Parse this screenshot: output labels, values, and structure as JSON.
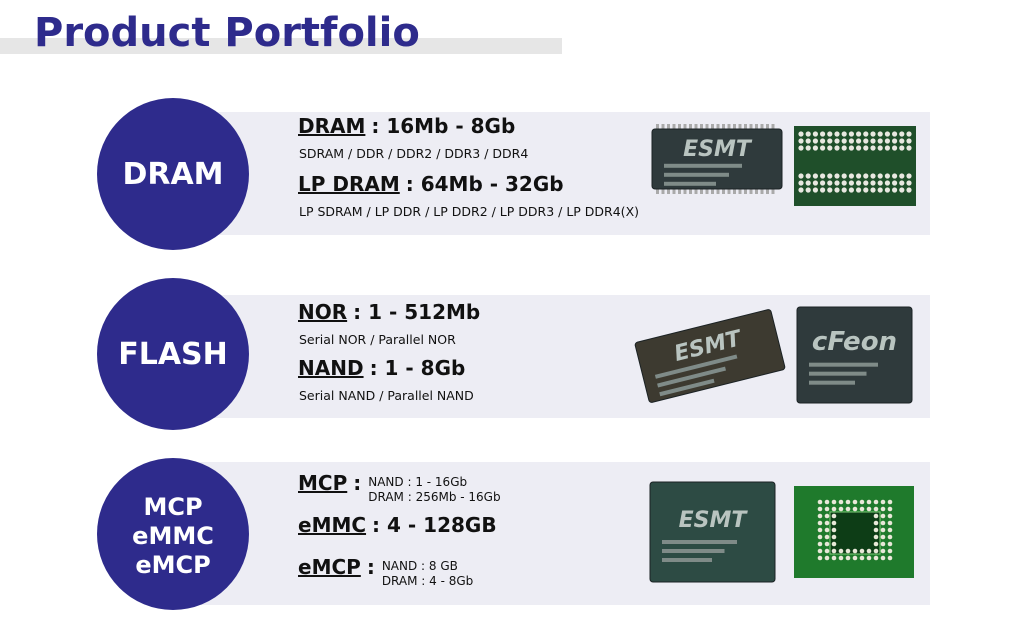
{
  "header": {
    "title": "Product Portfolio"
  },
  "sections": [
    {
      "label_lines": [
        "DRAM"
      ],
      "items": [
        {
          "name": "DRAM",
          "spec": ": 16Mb - 8Gb",
          "detail": "SDRAM / DDR / DDR2 / DDR3 / DDR4"
        },
        {
          "name": "LP DRAM",
          "spec": ": 64Mb - 32Gb",
          "detail": "LP SDRAM / LP DDR / LP DDR2 / LP DDR3 / LP DDR4(X)"
        }
      ],
      "chips": [
        {
          "brand": "ESMT"
        }
      ]
    },
    {
      "label_lines": [
        "FLASH"
      ],
      "items": [
        {
          "name": "NOR",
          "spec": ": 1 - 512Mb",
          "detail": "Serial NOR / Parallel NOR"
        },
        {
          "name": "NAND",
          "spec": ": 1 - 8Gb",
          "detail": "Serial NAND / Parallel NAND"
        }
      ],
      "chips": [
        {
          "brand": "ESMT"
        },
        {
          "brand": "cFeon"
        }
      ]
    },
    {
      "label_lines": [
        "MCP",
        "eMMC",
        "eMCP"
      ],
      "items": [
        {
          "name": "MCP",
          "spec": ":",
          "notes": [
            "NAND : 1 - 16Gb",
            "DRAM : 256Mb - 16Gb"
          ]
        },
        {
          "name": "eMMC",
          "spec": ": 4 - 128GB"
        },
        {
          "name": "eMCP",
          "spec": ":",
          "notes": [
            "NAND : 8 GB",
            "DRAM : 4 - 8Gb"
          ]
        }
      ],
      "chips": [
        {
          "brand": "ESMT"
        }
      ]
    }
  ]
}
